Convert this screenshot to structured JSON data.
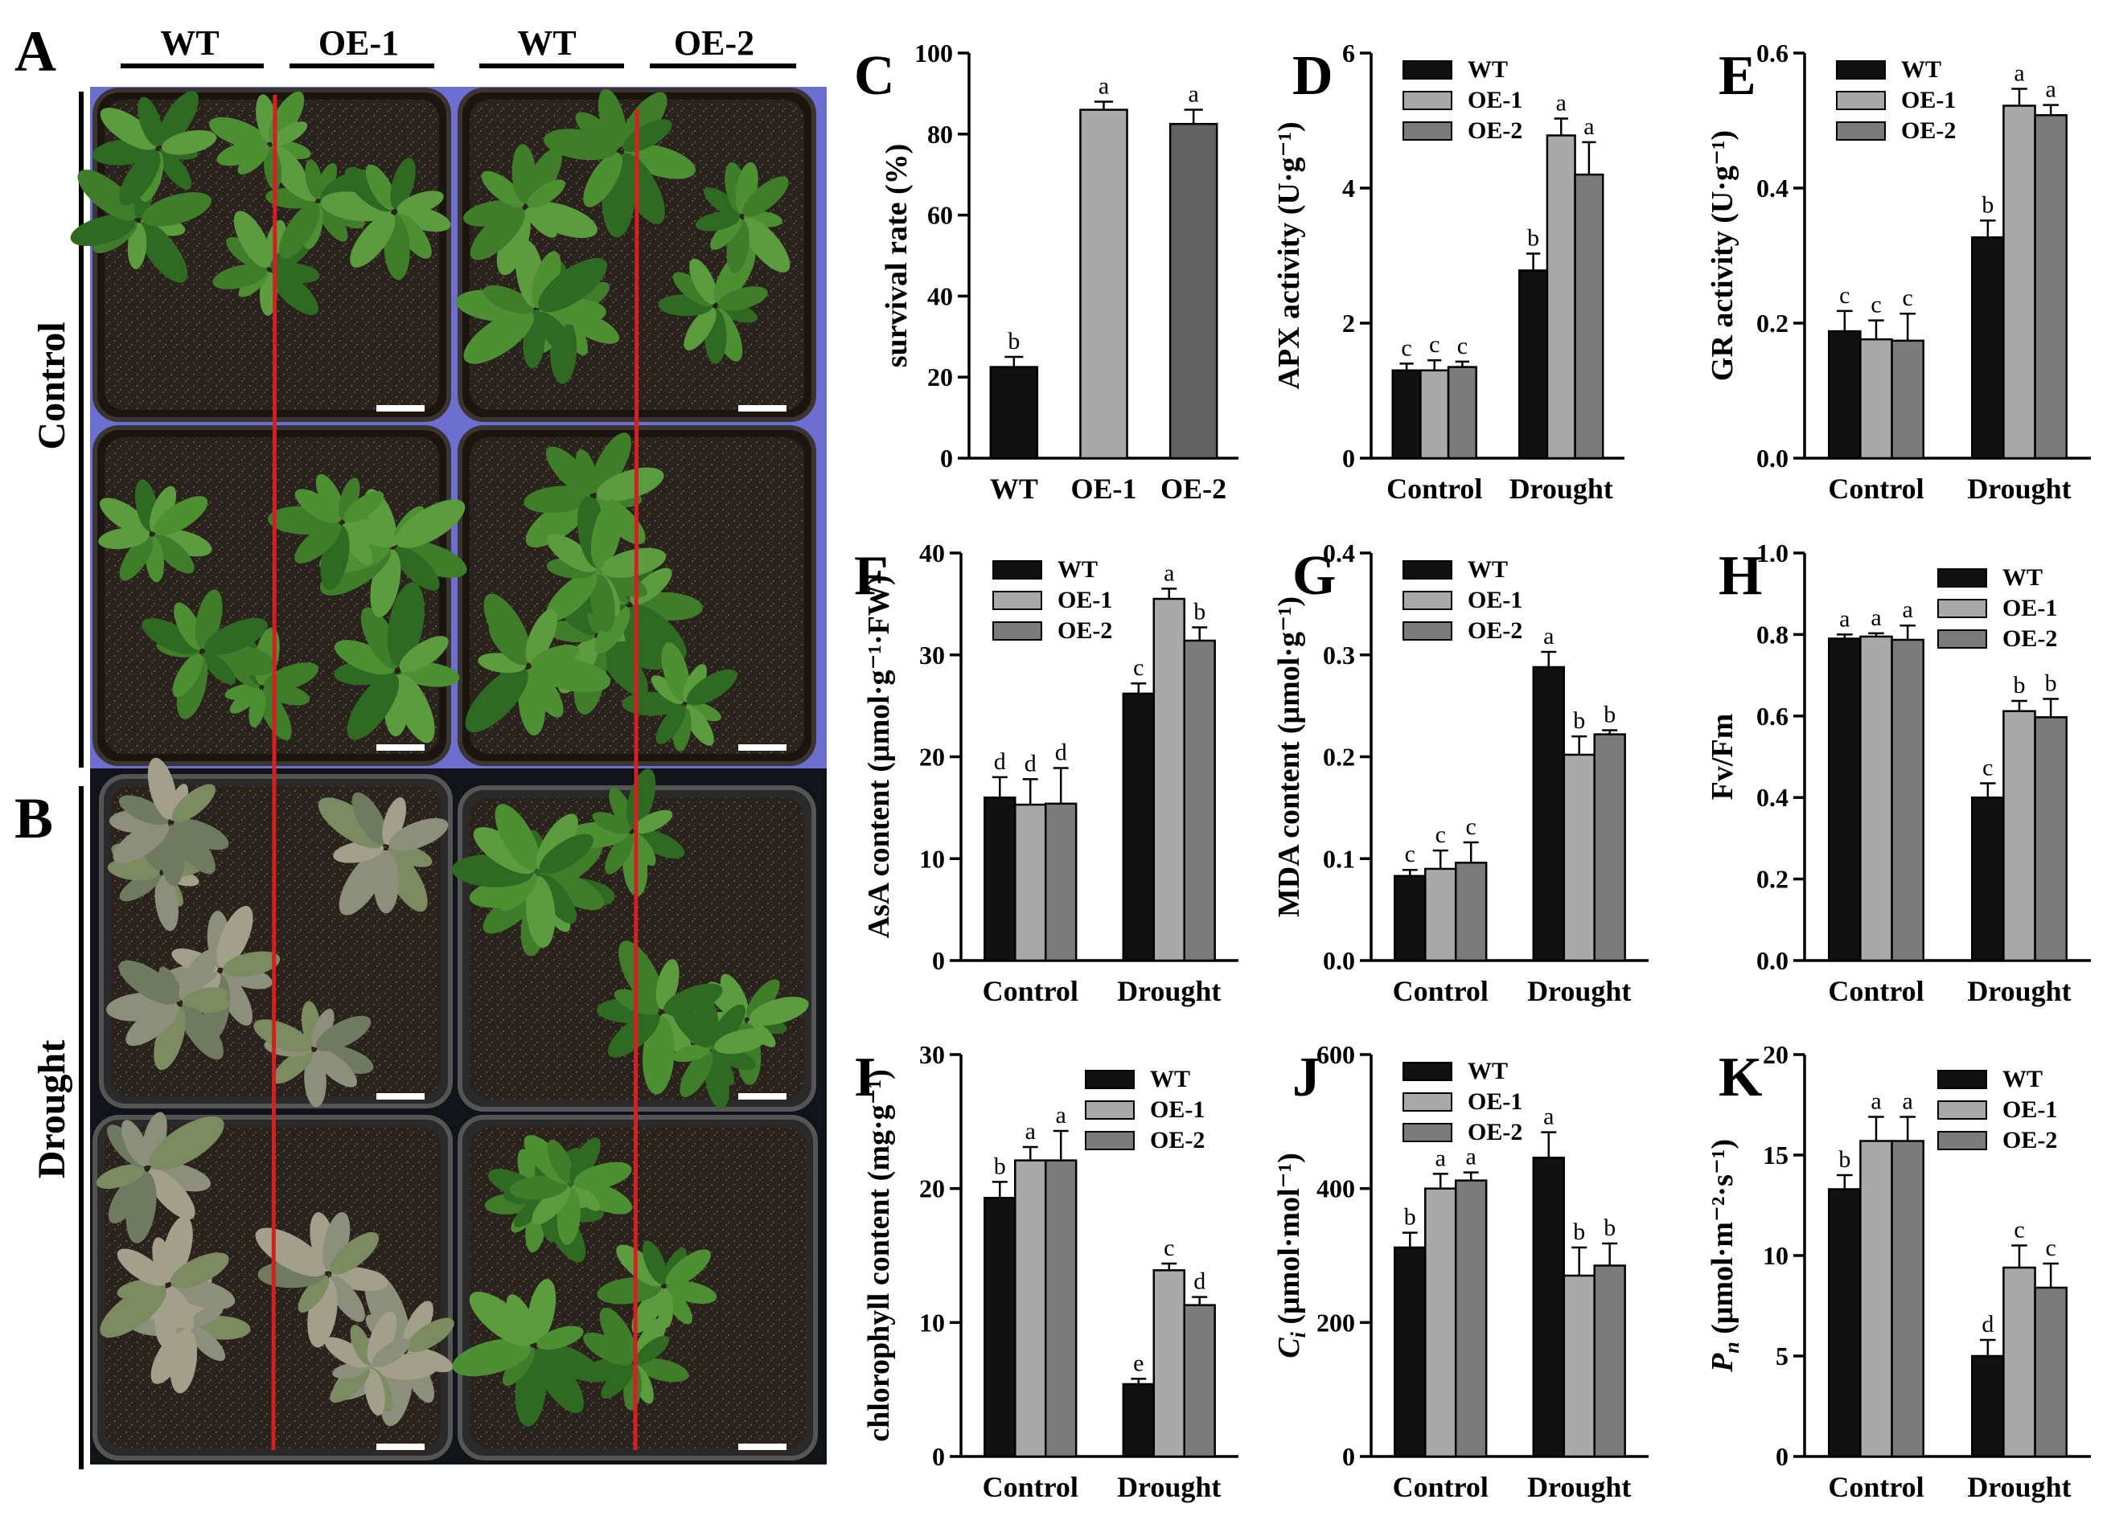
{
  "panel_letters": {
    "A": "A",
    "B": "B"
  },
  "photo": {
    "genotype_headers": [
      "WT",
      "OE-1",
      "WT",
      "OE-2"
    ],
    "row_labels": {
      "control": "Control",
      "drought": "Drought"
    }
  },
  "colors": {
    "WT": "#111111",
    "OE-1": "#a9a9a9",
    "OE-2": "#7b7b7b",
    "red_line": "#d42020",
    "control_bg": "#6c6fcf",
    "drought_bg": "#101418"
  },
  "chart_data": [
    {
      "panel": "C",
      "type": "bar",
      "ylabel": "survival rate (%)",
      "ylim": [
        0,
        100
      ],
      "yticks": [
        0,
        20,
        40,
        60,
        80,
        100
      ],
      "categories": [
        "WT",
        "OE-1",
        "OE-2"
      ],
      "values": [
        22.5,
        86,
        82.5
      ],
      "errors": [
        2.5,
        2,
        3.5
      ],
      "letters": [
        "b",
        "a",
        "a"
      ],
      "colors": [
        "#111111",
        "#a9a9a9",
        "#626262"
      ]
    },
    {
      "panel": "D",
      "type": "bar",
      "ylabel": "APX activity (U·g⁻¹)",
      "ylim": [
        0,
        6
      ],
      "yticks": [
        0,
        2,
        4,
        6
      ],
      "categories": [
        "Control",
        "Drought"
      ],
      "legend": [
        "WT",
        "OE-1",
        "OE-2"
      ],
      "legend_pos": "top-left",
      "series": [
        {
          "name": "WT",
          "values": [
            1.3,
            2.78
          ],
          "errors": [
            0.1,
            0.25
          ],
          "letters": [
            "c",
            "b"
          ]
        },
        {
          "name": "OE-1",
          "values": [
            1.3,
            4.78
          ],
          "errors": [
            0.15,
            0.25
          ],
          "letters": [
            "c",
            "a"
          ]
        },
        {
          "name": "OE-2",
          "values": [
            1.35,
            4.2
          ],
          "errors": [
            0.08,
            0.48
          ],
          "letters": [
            "c",
            "a"
          ]
        }
      ]
    },
    {
      "panel": "E",
      "type": "bar",
      "ylabel": "GR activity (U·g⁻¹)",
      "ylim": [
        0,
        0.6
      ],
      "yticks": [
        0.0,
        0.2,
        0.4,
        0.6
      ],
      "categories": [
        "Control",
        "Drought"
      ],
      "legend": [
        "WT",
        "OE-1",
        "OE-2"
      ],
      "legend_pos": "top-left",
      "series": [
        {
          "name": "WT",
          "values": [
            0.188,
            0.327
          ],
          "errors": [
            0.03,
            0.025
          ],
          "letters": [
            "c",
            "b"
          ]
        },
        {
          "name": "OE-1",
          "values": [
            0.176,
            0.522
          ],
          "errors": [
            0.028,
            0.025
          ],
          "letters": [
            "c",
            "a"
          ]
        },
        {
          "name": "OE-2",
          "values": [
            0.174,
            0.508
          ],
          "errors": [
            0.04,
            0.015
          ],
          "letters": [
            "c",
            "a"
          ]
        }
      ]
    },
    {
      "panel": "F",
      "type": "bar",
      "ylabel": "AsA content (μmol·g⁻¹·FW)",
      "ylim": [
        0,
        40
      ],
      "yticks": [
        0,
        10,
        20,
        30,
        40
      ],
      "categories": [
        "Control",
        "Drought"
      ],
      "legend": [
        "WT",
        "OE-1",
        "OE-2"
      ],
      "legend_pos": "top-left",
      "series": [
        {
          "name": "WT",
          "values": [
            16,
            26.2
          ],
          "errors": [
            2,
            1
          ],
          "letters": [
            "d",
            "c"
          ]
        },
        {
          "name": "OE-1",
          "values": [
            15.3,
            35.5
          ],
          "errors": [
            2.5,
            1
          ],
          "letters": [
            "d",
            "a"
          ]
        },
        {
          "name": "OE-2",
          "values": [
            15.4,
            31.4
          ],
          "errors": [
            3.5,
            1.3
          ],
          "letters": [
            "d",
            "b"
          ]
        }
      ]
    },
    {
      "panel": "G",
      "type": "bar",
      "ylabel": "MDA content (μmol·g⁻¹)",
      "ylim": [
        0,
        0.4
      ],
      "yticks": [
        0.0,
        0.1,
        0.2,
        0.3,
        0.4
      ],
      "categories": [
        "Control",
        "Drought"
      ],
      "legend": [
        "WT",
        "OE-1",
        "OE-2"
      ],
      "legend_pos": "top-left",
      "series": [
        {
          "name": "WT",
          "values": [
            0.083,
            0.288
          ],
          "errors": [
            0.006,
            0.015
          ],
          "letters": [
            "c",
            "a"
          ]
        },
        {
          "name": "OE-1",
          "values": [
            0.09,
            0.202
          ],
          "errors": [
            0.018,
            0.018
          ],
          "letters": [
            "c",
            "b"
          ]
        },
        {
          "name": "OE-2",
          "values": [
            0.096,
            0.222
          ],
          "errors": [
            0.02,
            0.004
          ],
          "letters": [
            "c",
            "b"
          ]
        }
      ]
    },
    {
      "panel": "H",
      "type": "bar",
      "ylabel": "Fv/Fm",
      "ylim": [
        0,
        1.0
      ],
      "yticks": [
        0.0,
        0.2,
        0.4,
        0.6,
        0.8,
        1.0
      ],
      "categories": [
        "Control",
        "Drought"
      ],
      "legend": [
        "WT",
        "OE-1",
        "OE-2"
      ],
      "legend_pos": "top-right",
      "series": [
        {
          "name": "WT",
          "values": [
            0.79,
            0.4
          ],
          "errors": [
            0.01,
            0.035
          ],
          "letters": [
            "a",
            "c"
          ]
        },
        {
          "name": "OE-1",
          "values": [
            0.795,
            0.612
          ],
          "errors": [
            0.008,
            0.025
          ],
          "letters": [
            "a",
            "b"
          ]
        },
        {
          "name": "OE-2",
          "values": [
            0.787,
            0.597
          ],
          "errors": [
            0.035,
            0.045
          ],
          "letters": [
            "a",
            "b"
          ]
        }
      ]
    },
    {
      "panel": "I",
      "type": "bar",
      "ylabel": "chlorophyll content (mg·g⁻¹)",
      "ylim": [
        0,
        30
      ],
      "yticks": [
        0,
        10,
        20,
        30
      ],
      "categories": [
        "Control",
        "Drought"
      ],
      "legend": [
        "WT",
        "OE-1",
        "OE-2"
      ],
      "legend_pos": "top-right",
      "series": [
        {
          "name": "WT",
          "values": [
            19.3,
            5.4
          ],
          "errors": [
            1.2,
            0.4
          ],
          "letters": [
            "b",
            "e"
          ]
        },
        {
          "name": "OE-1",
          "values": [
            22.1,
            13.9
          ],
          "errors": [
            1,
            0.5
          ],
          "letters": [
            "a",
            "c"
          ]
        },
        {
          "name": "OE-2",
          "values": [
            22.1,
            11.3
          ],
          "errors": [
            2.2,
            0.6
          ],
          "letters": [
            "a",
            "d"
          ]
        }
      ]
    },
    {
      "panel": "J",
      "type": "bar",
      "ylabel": "Ci (μmol·mol⁻¹)",
      "ylabel_main": "C",
      "ylabel_sub": "i",
      "ylabel_rest": " (μmol·mol⁻¹)",
      "ylim": [
        0,
        600
      ],
      "yticks": [
        0,
        200,
        400,
        600
      ],
      "categories": [
        "Control",
        "Drought"
      ],
      "legend": [
        "WT",
        "OE-1",
        "OE-2"
      ],
      "legend_pos": "top-left",
      "series": [
        {
          "name": "WT",
          "values": [
            312,
            446
          ],
          "errors": [
            22,
            38
          ],
          "letters": [
            "b",
            "a"
          ]
        },
        {
          "name": "OE-1",
          "values": [
            400,
            270
          ],
          "errors": [
            22,
            42
          ],
          "letters": [
            "a",
            "b"
          ]
        },
        {
          "name": "OE-2",
          "values": [
            412,
            285
          ],
          "errors": [
            12,
            33
          ],
          "letters": [
            "a",
            "b"
          ]
        }
      ]
    },
    {
      "panel": "K",
      "type": "bar",
      "ylabel": "Pn (μmol·m⁻²·s⁻¹)",
      "ylabel_main": "P",
      "ylabel_sub": "n",
      "ylabel_rest": " (μmol·m⁻²·s⁻¹)",
      "ylim": [
        0,
        20
      ],
      "yticks": [
        0,
        5,
        10,
        15,
        20
      ],
      "categories": [
        "Control",
        "Drought"
      ],
      "legend": [
        "WT",
        "OE-1",
        "OE-2"
      ],
      "legend_pos": "top-right",
      "series": [
        {
          "name": "WT",
          "values": [
            13.3,
            5
          ],
          "errors": [
            0.7,
            0.8
          ],
          "letters": [
            "b",
            "d"
          ]
        },
        {
          "name": "OE-1",
          "values": [
            15.7,
            9.4
          ],
          "errors": [
            1.2,
            1.1
          ],
          "letters": [
            "a",
            "c"
          ]
        },
        {
          "name": "OE-2",
          "values": [
            15.7,
            8.4
          ],
          "errors": [
            1.2,
            1.2
          ],
          "letters": [
            "a",
            "c"
          ]
        }
      ]
    }
  ]
}
